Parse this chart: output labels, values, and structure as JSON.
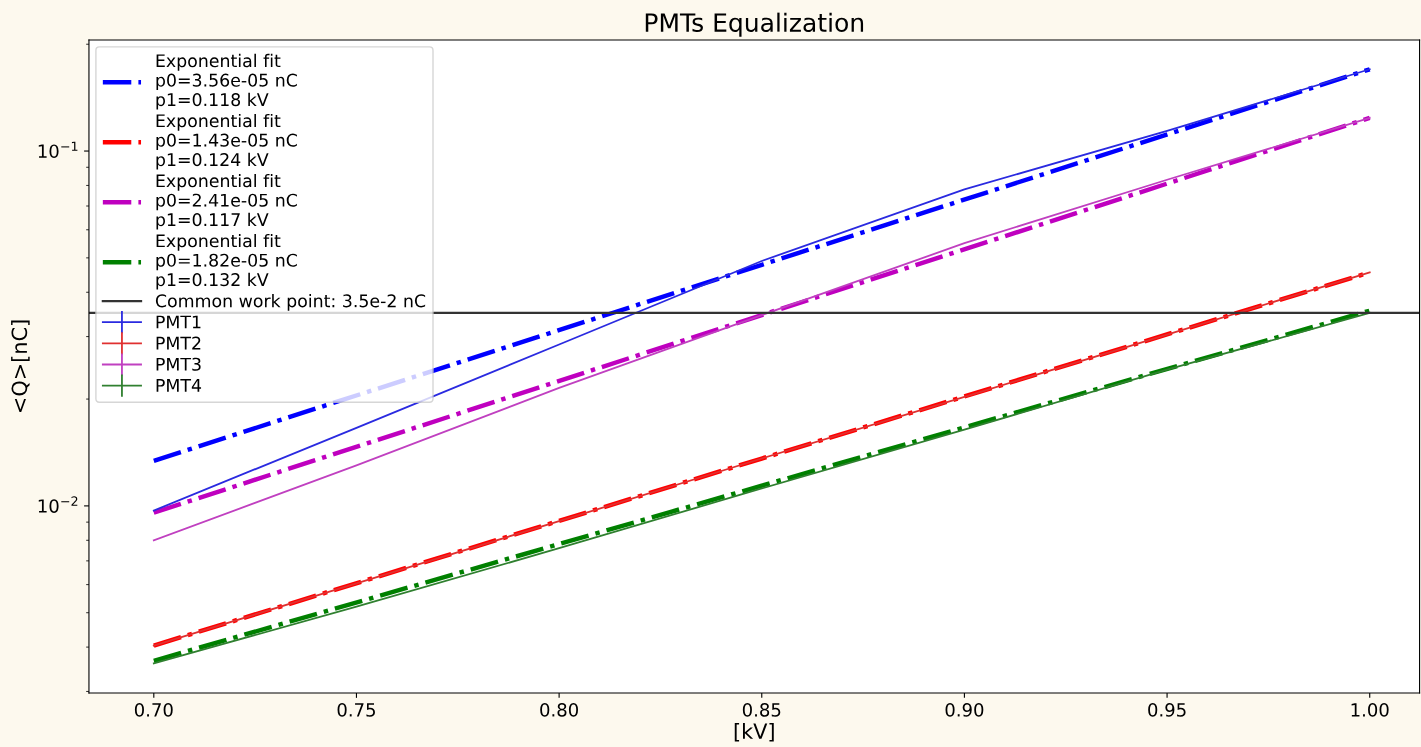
{
  "chart_data": {
    "type": "line",
    "title": "PMTs Equalization",
    "xlabel": "[kV]",
    "ylabel": "<Q>[nC]",
    "log": "y",
    "xlim": [
      0.684,
      1.0123
    ],
    "ylim": [
      0.00297,
      0.2056
    ],
    "xticks": [
      {
        "value": 0.7,
        "label": "0.70"
      },
      {
        "value": 0.75,
        "label": "0.75"
      },
      {
        "value": 0.8,
        "label": "0.80"
      },
      {
        "value": 0.85,
        "label": "0.85"
      },
      {
        "value": 0.9,
        "label": "0.90"
      },
      {
        "value": 0.95,
        "label": "0.95"
      },
      {
        "value": 1.0,
        "label": "1.00"
      }
    ],
    "yticks": [
      {
        "value": 0.01,
        "label": "10$^{−2}$"
      },
      {
        "value": 0.1,
        "label": "10$^{−1}$"
      }
    ],
    "grid": false,
    "legend": "top left",
    "ref_lines": [
      {
        "axis": "y",
        "value": 0.035,
        "label": "Common work point: 3.5e-2 nC",
        "color": "#333333",
        "line_style": "solid"
      }
    ],
    "series": [
      {
        "name": "Exponential fit\np0=3.56e-05 nC\np1=0.118 kV",
        "color": "#0000ff",
        "line_style": "dashdot",
        "x": [
          0.7,
          0.85,
          1.0
        ],
        "values": [
          0.0134,
          0.0478,
          0.17
        ]
      },
      {
        "name": "Exponential fit\np0=1.43e-05 nC\np1=0.124 kV",
        "color": "#ff0000",
        "line_style": "dashdot",
        "x": [
          0.7,
          0.85,
          1.0
        ],
        "values": [
          0.00404,
          0.0136,
          0.0455
        ]
      },
      {
        "name": "Exponential fit\np0=2.41e-05 nC\np1=0.117 kV",
        "color": "#bf00bf",
        "line_style": "dashdot",
        "x": [
          0.7,
          0.85,
          1.0
        ],
        "values": [
          0.00957,
          0.0345,
          0.124
        ]
      },
      {
        "name": "Exponential fit\np0=1.82e-05 nC\np1=0.132 kV",
        "color": "#008000",
        "line_style": "dashdot",
        "x": [
          0.7,
          0.85,
          1.0
        ],
        "values": [
          0.00366,
          0.0114,
          0.0355
        ]
      },
      {
        "name": "PMT1",
        "color": "#2a2ae0",
        "line_style": "solid",
        "x": [
          0.7,
          0.75,
          0.8,
          0.85,
          0.9,
          0.95,
          1.0
        ],
        "values": [
          0.0097,
          0.0166,
          0.0285,
          0.049,
          0.078,
          0.114,
          0.17
        ]
      },
      {
        "name": "PMT2",
        "color": "#e03030",
        "line_style": "solid",
        "x": [
          0.7,
          0.75,
          0.8,
          0.85,
          0.9,
          0.95,
          1.0
        ],
        "values": [
          0.00404,
          0.00605,
          0.00906,
          0.0136,
          0.0203,
          0.0304,
          0.0455
        ]
      },
      {
        "name": "PMT3",
        "color": "#c040c0",
        "line_style": "solid",
        "x": [
          0.7,
          0.75,
          0.8,
          0.85,
          0.9,
          0.95,
          1.0
        ],
        "values": [
          0.008,
          0.013,
          0.0215,
          0.0345,
          0.055,
          0.083,
          0.124
        ]
      },
      {
        "name": "PMT4",
        "color": "#308030",
        "line_style": "solid",
        "x": [
          0.7,
          0.75,
          0.8,
          0.85,
          0.9,
          0.95,
          1.0
        ],
        "values": [
          0.0036,
          0.0052,
          0.0076,
          0.0112,
          0.0164,
          0.0242,
          0.035
        ]
      }
    ]
  }
}
